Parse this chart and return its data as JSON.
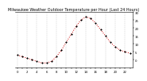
{
  "title": "Milwaukee Weather Outdoor Temperature per Hour (Last 24 Hours)",
  "hours": [
    0,
    1,
    2,
    3,
    4,
    5,
    6,
    7,
    8,
    9,
    10,
    11,
    12,
    13,
    14,
    15,
    16,
    17,
    18,
    19,
    20,
    21,
    22,
    23
  ],
  "temps": [
    3,
    2,
    1,
    0,
    -1,
    -2,
    -2,
    -1,
    2,
    6,
    11,
    16,
    21,
    25,
    27,
    26,
    23,
    19,
    15,
    11,
    8,
    6,
    5,
    4
  ],
  "line_color": "#cc0000",
  "marker_color": "#000000",
  "grid_color": "#aaaaaa",
  "bg_color": "#ffffff",
  "ylim": [
    -5,
    30
  ],
  "yticks": [
    0,
    5,
    10,
    15,
    20,
    25,
    30
  ],
  "ytick_labels": [
    "0",
    "5",
    "10",
    "15",
    "20",
    "25",
    "30"
  ],
  "title_fontsize": 3.5,
  "tick_fontsize": 2.8
}
